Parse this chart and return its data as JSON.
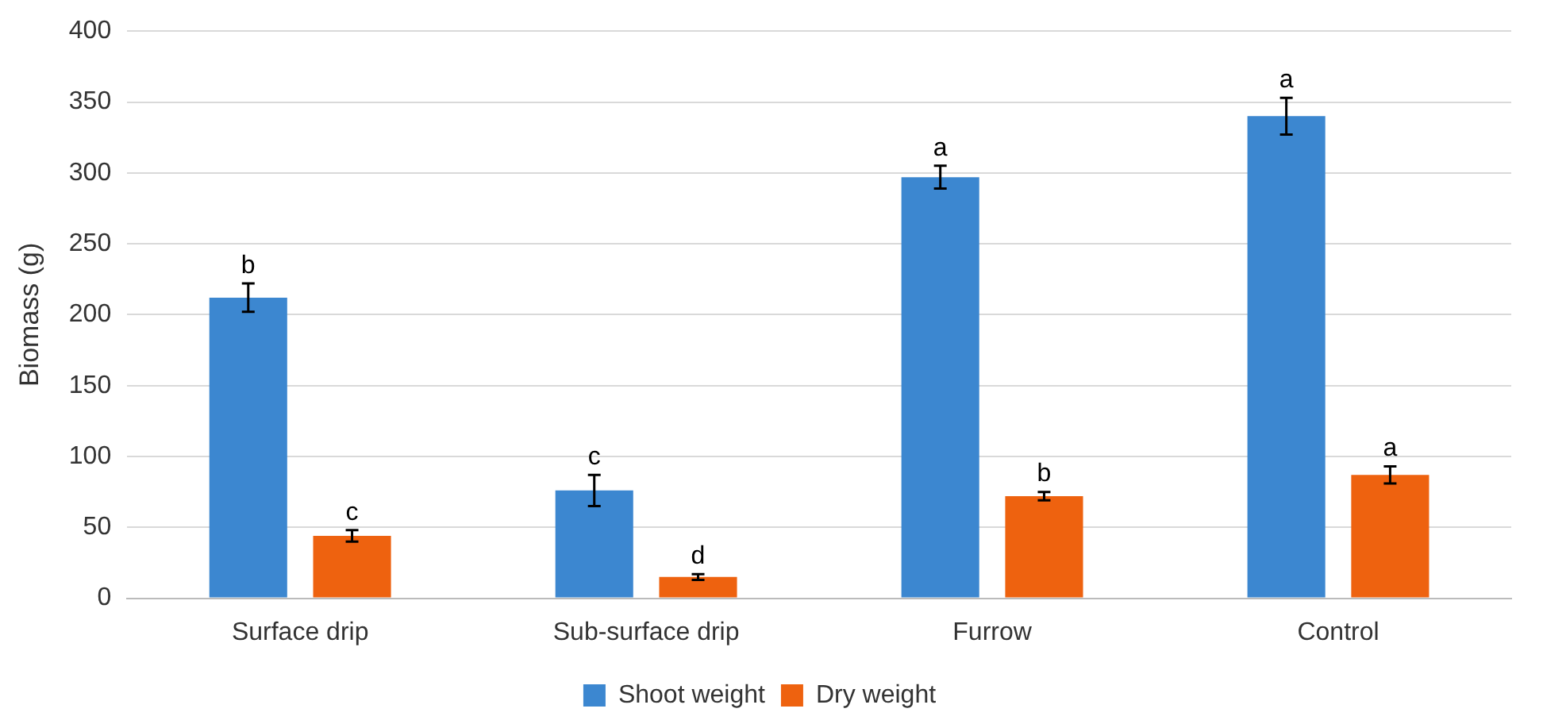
{
  "chart_data": {
    "type": "bar",
    "ylabel": "Biomass (g)",
    "categories": [
      "Surface drip",
      "Sub-surface drip",
      "Furrow",
      "Control"
    ],
    "series": [
      {
        "name": "Shoot weight",
        "color": "#3c87d0",
        "values": [
          212,
          76,
          297,
          340
        ],
        "errors": [
          10,
          11,
          8,
          13
        ],
        "value_labels": [
          "b",
          "c",
          "a",
          "a"
        ]
      },
      {
        "name": "Dry weight",
        "color": "#ee620f",
        "values": [
          44,
          15,
          72,
          87
        ],
        "errors": [
          4,
          2,
          3,
          6
        ],
        "value_labels": [
          "c",
          "d",
          "b",
          "a"
        ]
      }
    ],
    "ylim": [
      0,
      400
    ],
    "yticks": [
      0,
      50,
      100,
      150,
      200,
      250,
      300,
      350,
      400
    ],
    "grid": "y",
    "legend": "bottom"
  }
}
